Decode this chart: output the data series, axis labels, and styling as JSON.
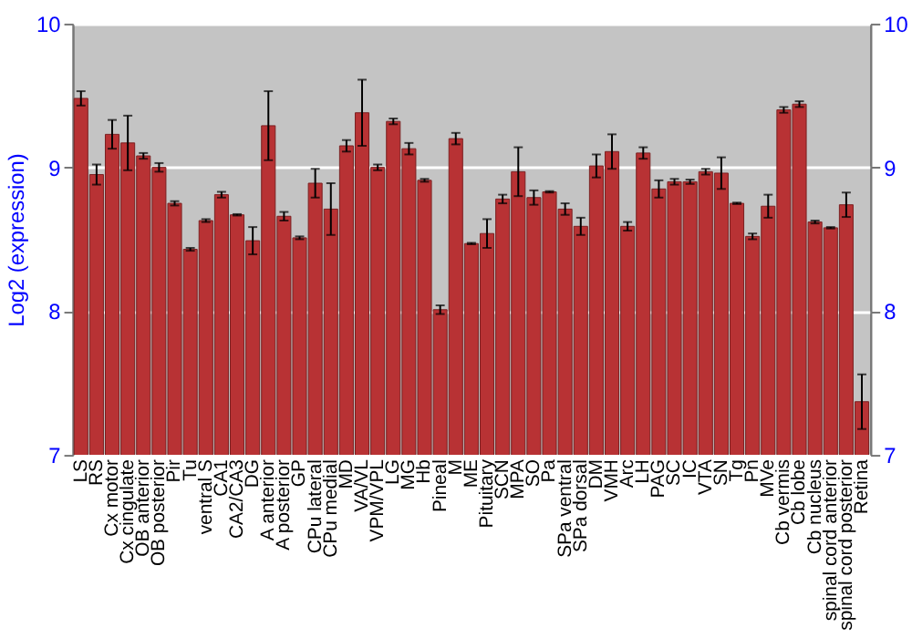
{
  "chart_data": {
    "type": "bar",
    "ylabel": "Log2 (expression)",
    "categories": [
      "LS",
      "RS",
      "Cx motor",
      "Cx cingulate",
      "OB anterior",
      "OB posterior",
      "Pir",
      "Tu",
      "ventral S",
      "CA1",
      "CA2/CA3",
      "DG",
      "A anterior",
      "A posterior",
      "GP",
      "CPu lateral",
      "CPu medial",
      "MD",
      "VA/VL",
      "VPM/VPL",
      "LG",
      "MG",
      "Hb",
      "Pineal",
      "M",
      "ME",
      "Pituitary",
      "SCN",
      "MPA",
      "SO",
      "Pa",
      "SPa ventral",
      "SPa dorsal",
      "DM",
      "VMH",
      "Arc",
      "LH",
      "PAG",
      "SC",
      "IC",
      "VTA",
      "SN",
      "Tg",
      "Pn",
      "MVe",
      "Cb vermis",
      "Cb lobe",
      "Cb nucleus",
      "spinal cord anterior",
      "spinal cord posterior",
      "Retina"
    ],
    "series": [
      {
        "color": "#b83234",
        "values": [
          9.48,
          8.95,
          9.23,
          9.17,
          9.08,
          9.0,
          8.75,
          8.43,
          8.63,
          8.81,
          8.67,
          8.49,
          9.29,
          8.66,
          8.51,
          8.89,
          8.71,
          9.15,
          9.38,
          9.0,
          9.32,
          9.13,
          8.91,
          8.01,
          9.2,
          8.47,
          8.54,
          8.78,
          8.97,
          8.79,
          8.83,
          8.71,
          8.59,
          9.01,
          9.11,
          8.59,
          9.1,
          8.85,
          8.9,
          8.9,
          8.97,
          8.96,
          8.75,
          8.52,
          8.73,
          9.4,
          9.44,
          8.62,
          8.58,
          8.74,
          7.37
        ],
        "errors": [
          0.05,
          0.07,
          0.1,
          0.19,
          0.02,
          0.03,
          0.015,
          0.01,
          0.01,
          0.02,
          0.005,
          0.095,
          0.24,
          0.03,
          0.01,
          0.1,
          0.18,
          0.04,
          0.23,
          0.02,
          0.02,
          0.04,
          0.01,
          0.03,
          0.04,
          0.005,
          0.1,
          0.03,
          0.17,
          0.05,
          0.005,
          0.04,
          0.06,
          0.08,
          0.12,
          0.03,
          0.04,
          0.06,
          0.02,
          0.015,
          0.02,
          0.11,
          0.005,
          0.02,
          0.08,
          0.02,
          0.02,
          0.01,
          0.005,
          0.085,
          0.19
        ]
      }
    ],
    "ylim": [
      7,
      10
    ],
    "yticks": [
      7,
      8,
      9,
      10
    ],
    "y2lim": [
      7,
      10
    ],
    "y2ticks": [
      7,
      8,
      9,
      10
    ],
    "grid": "y"
  }
}
